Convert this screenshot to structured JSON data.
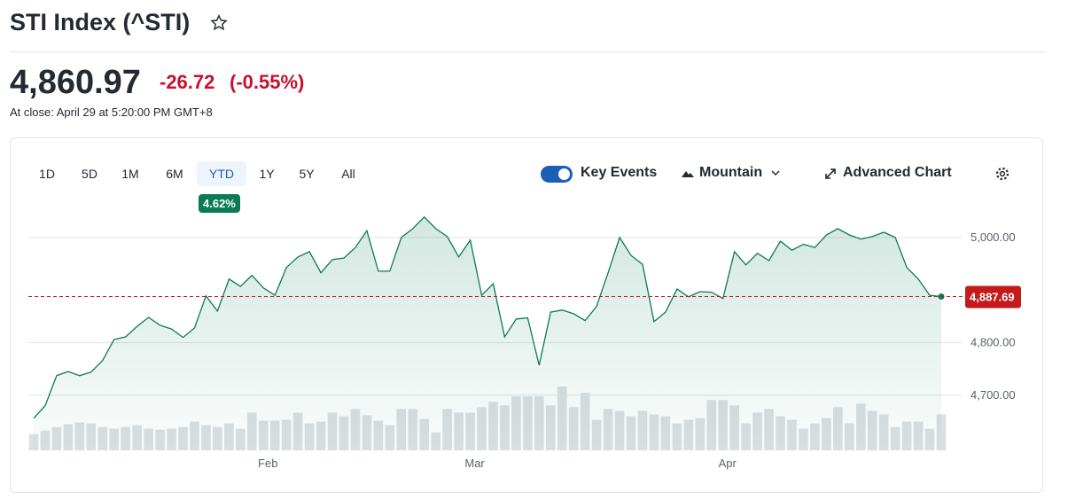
{
  "header": {
    "title": "STI Index (^STI)",
    "price": "4,860.97",
    "change": "-26.72",
    "change_percent": "(-0.55%)",
    "close_note": "At close: April 29 at 5:20:00 PM GMT+8"
  },
  "controls": {
    "ranges": [
      "1D",
      "5D",
      "1M",
      "6M",
      "YTD",
      "1Y",
      "5Y",
      "All"
    ],
    "selected_range": 4,
    "range_badge": "4.62%",
    "key_events": "Key Events",
    "chart_style": "Mountain",
    "advanced": "Advanced Chart"
  },
  "chart_data": {
    "type": "area",
    "color": "#0b7b55",
    "categories": [
      null,
      null,
      null,
      null,
      null,
      null,
      null,
      null,
      null,
      null,
      null,
      null,
      null,
      null,
      null,
      null,
      null,
      null,
      null,
      null,
      "Feb",
      null,
      null,
      null,
      null,
      null,
      null,
      null,
      null,
      null,
      null,
      null,
      null,
      null,
      null,
      null,
      null,
      null,
      "Mar",
      null,
      null,
      null,
      null,
      null,
      null,
      null,
      null,
      null,
      null,
      null,
      null,
      null,
      null,
      null,
      null,
      null,
      null,
      null,
      null,
      null,
      "Apr",
      null,
      null,
      null,
      null,
      null,
      null,
      null,
      null,
      null,
      null,
      null,
      null,
      null,
      null,
      null,
      null,
      null,
      null,
      null
    ],
    "values": [
      4656,
      4680,
      4737,
      4745,
      4737,
      4744,
      4766,
      4806,
      4811,
      4831,
      4848,
      4833,
      4826,
      4810,
      4828,
      4889,
      4860,
      4921,
      4907,
      4928,
      4904,
      4890,
      4943,
      4963,
      4973,
      4933,
      4958,
      4961,
      4981,
      5013,
      4936,
      4936,
      5000,
      5017,
      5039,
      5017,
      5002,
      4963,
      4995,
      4890,
      4912,
      4811,
      4845,
      4847,
      4757,
      4858,
      4862,
      4855,
      4842,
      4869,
      4933,
      5000,
      4966,
      4949,
      4840,
      4858,
      4902,
      4887,
      4897,
      4896,
      4884,
      4973,
      4948,
      4970,
      4956,
      4993,
      4976,
      4987,
      4981,
      5005,
      5017,
      5005,
      4997,
      5002,
      5010,
      5000,
      4943,
      4921,
      4890,
      4887.69
    ],
    "volumes": [
      18,
      22,
      26,
      29,
      31,
      30,
      26,
      24,
      26,
      28,
      24,
      23,
      24,
      26,
      32,
      28,
      26,
      30,
      24,
      42,
      33,
      33,
      34,
      42,
      30,
      32,
      42,
      38,
      46,
      39,
      33,
      28,
      46,
      46,
      35,
      20,
      46,
      42,
      42,
      48,
      54,
      50,
      60,
      60,
      60,
      50,
      71,
      48,
      64,
      34,
      46,
      44,
      38,
      44,
      40,
      38,
      30,
      34,
      36,
      56,
      56,
      50,
      30,
      42,
      46,
      38,
      34,
      24,
      30,
      36,
      48,
      30,
      52,
      44,
      40,
      26,
      32,
      32,
      24,
      40
    ],
    "ylim": [
      4595,
      5064
    ],
    "yticks": [
      {
        "value": 4700,
        "label": "4,700.00"
      },
      {
        "value": 4800,
        "label": "4,800.00"
      },
      {
        "value": 5000,
        "label": "5,000.00"
      }
    ],
    "reference": {
      "value": 4887.69,
      "label": "4,887.69",
      "color": "#c41a1a"
    },
    "grid": true
  }
}
